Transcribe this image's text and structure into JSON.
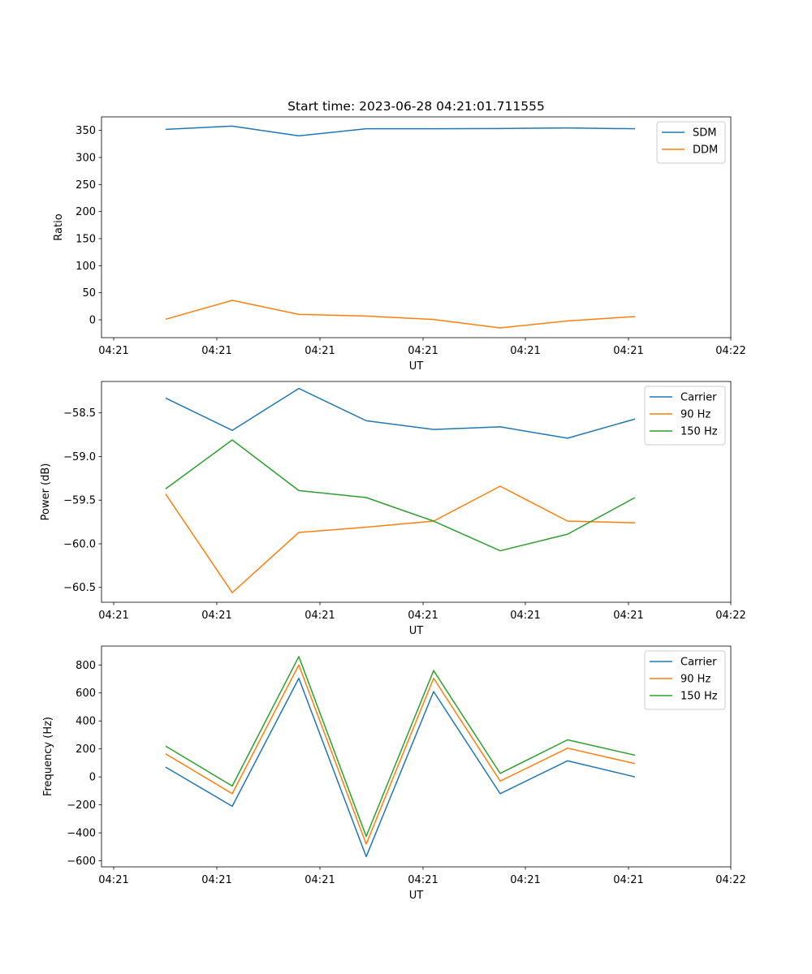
{
  "figure": {
    "title": "Start time: 2023-06-28 04:21:01.711555"
  },
  "chart_data": [
    {
      "type": "line",
      "xlabel": "UT",
      "ylabel": "Ratio",
      "x_ticks": [
        "04:21",
        "04:21",
        "04:21",
        "04:21",
        "04:21",
        "04:21",
        "04:22"
      ],
      "ylim": [
        -33,
        375
      ],
      "y_ticks": [
        0,
        50,
        100,
        150,
        200,
        250,
        300,
        350
      ],
      "legend": "top-right",
      "series": [
        {
          "name": "SDM",
          "color": "#1f77b4",
          "values": [
            352,
            358,
            340,
            353,
            353,
            353.5,
            354.5,
            353
          ]
        },
        {
          "name": "DDM",
          "color": "#ff7f0e",
          "values": [
            1,
            36,
            10,
            7,
            0.5,
            -15,
            -2,
            6
          ]
        }
      ]
    },
    {
      "type": "line",
      "xlabel": "UT",
      "ylabel": "Power (dB)",
      "x_ticks": [
        "04:21",
        "04:21",
        "04:21",
        "04:21",
        "04:21",
        "04:21",
        "04:22"
      ],
      "ylim": [
        -60.67,
        -58.14
      ],
      "y_ticks": [
        -60.5,
        -60.0,
        -59.5,
        -59.0,
        -58.5
      ],
      "legend": "top-right",
      "series": [
        {
          "name": "Carrier",
          "color": "#1f77b4",
          "values": [
            -58.33,
            -58.7,
            -58.22,
            -58.59,
            -58.69,
            -58.66,
            -58.79,
            -58.57
          ]
        },
        {
          "name": "90 Hz",
          "color": "#ff7f0e",
          "values": [
            -59.43,
            -60.56,
            -59.87,
            -59.81,
            -59.74,
            -59.34,
            -59.74,
            -59.76
          ]
        },
        {
          "name": "150 Hz",
          "color": "#2ca02c",
          "values": [
            -59.37,
            -58.81,
            -59.39,
            -59.47,
            -59.74,
            -60.08,
            -59.89,
            -59.47
          ]
        }
      ]
    },
    {
      "type": "line",
      "xlabel": "UT",
      "ylabel": "Frequency (Hz)",
      "x_ticks": [
        "04:21",
        "04:21",
        "04:21",
        "04:21",
        "04:21",
        "04:21",
        "04:22"
      ],
      "ylim": [
        -643,
        935
      ],
      "y_ticks": [
        -600,
        -400,
        -200,
        0,
        200,
        400,
        600,
        800
      ],
      "legend": "top-right",
      "series": [
        {
          "name": "Carrier",
          "color": "#1f77b4",
          "values": [
            70,
            -210,
            705,
            -570,
            610,
            -120,
            115,
            0
          ]
        },
        {
          "name": "90 Hz",
          "color": "#ff7f0e",
          "values": [
            165,
            -120,
            800,
            -480,
            705,
            -30,
            205,
            95
          ]
        },
        {
          "name": "150 Hz",
          "color": "#2ca02c",
          "values": [
            220,
            -65,
            860,
            -425,
            760,
            25,
            265,
            155
          ]
        }
      ]
    }
  ]
}
